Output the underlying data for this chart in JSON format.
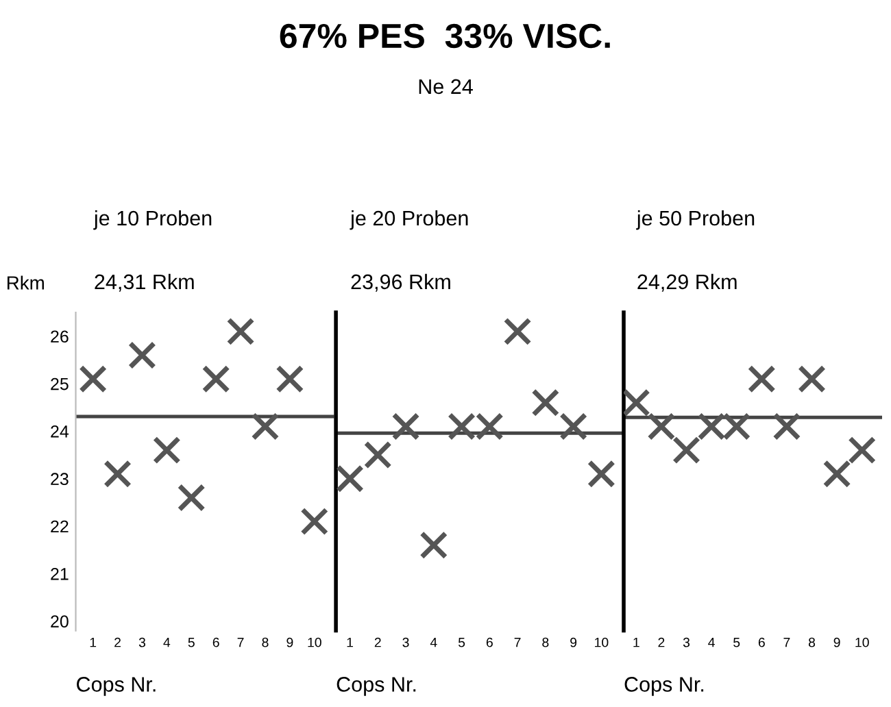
{
  "chart_data": [
    {
      "type": "scatter",
      "title": "je 10 Proben",
      "subtitle": "24,31 Rkm",
      "xlabel": "Cops Nr.",
      "ylabel": "Rkm",
      "annotations": [
        "67% PES  33% VISC.",
        "Ne 24"
      ],
      "categories": [
        "1",
        "2",
        "3",
        "4",
        "5",
        "6",
        "7",
        "8",
        "9",
        "10"
      ],
      "series": [
        {
          "color": "#555555",
          "values": [
            25.1,
            23.1,
            25.6,
            23.6,
            22.6,
            25.1,
            26.1,
            24.1,
            25.1,
            22.1
          ]
        }
      ],
      "ylim": [
        19.8,
        26.5
      ],
      "yticks": [
        20,
        21,
        22,
        23,
        24,
        25,
        26
      ],
      "marker": "cross",
      "ref_lines": [
        {
          "axis": "y",
          "value": 24.31,
          "color": "#444444"
        }
      ]
    },
    {
      "type": "scatter",
      "title": "je 20 Proben",
      "subtitle": "23,96 Rkm",
      "xlabel": "Cops Nr.",
      "categories": [
        "1",
        "2",
        "3",
        "4",
        "5",
        "6",
        "7",
        "8",
        "9",
        "10"
      ],
      "series": [
        {
          "color": "#555555",
          "values": [
            23.0,
            23.5,
            24.1,
            21.6,
            24.1,
            24.1,
            26.1,
            24.6,
            24.1,
            23.1
          ]
        }
      ],
      "ylim": [
        19.8,
        26.5
      ],
      "tick_labels": "x",
      "marker": "cross",
      "ref_lines": [
        {
          "axis": "y",
          "value": 23.96,
          "color": "#444444"
        }
      ]
    },
    {
      "type": "scatter",
      "title": "je 50 Proben",
      "subtitle": "24,29 Rkm",
      "xlabel": "Cops Nr.",
      "categories": [
        "1",
        "2",
        "3",
        "4",
        "5",
        "6",
        "7",
        "8",
        "9",
        "10"
      ],
      "series": [
        {
          "color": "#555555",
          "values": [
            24.6,
            24.1,
            23.6,
            24.1,
            24.1,
            25.1,
            24.1,
            25.1,
            23.1,
            23.6
          ]
        }
      ],
      "ylim": [
        19.8,
        26.5
      ],
      "tick_labels": "x",
      "marker": "cross",
      "ref_lines": [
        {
          "axis": "y",
          "value": 24.29,
          "color": "#444444"
        }
      ]
    }
  ]
}
